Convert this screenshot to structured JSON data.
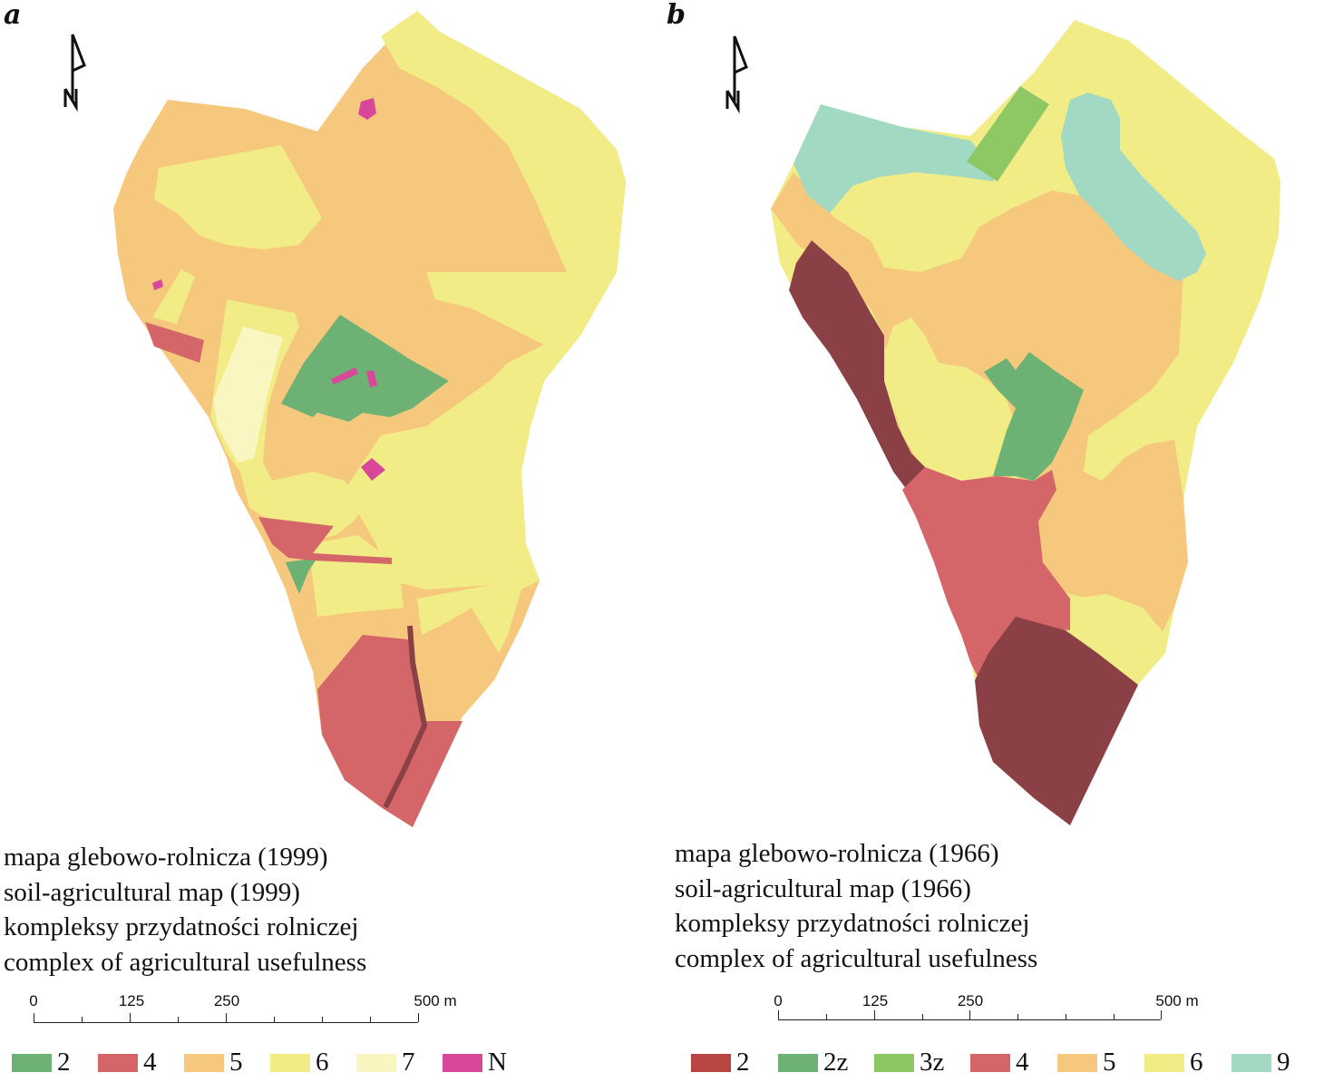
{
  "panels": [
    {
      "letter": "a",
      "titles": [
        "mapa glebowo-rolnicza (1999)",
        "soil-agricultural map (1999)",
        "kompleksy przydatności rolniczej",
        "complex of agricultural usefulness"
      ],
      "north_label": "N",
      "scale_labels": [
        "0",
        "125",
        "250",
        "500 m"
      ],
      "legend": [
        {
          "label": "2",
          "color": "#6db274"
        },
        {
          "label": "4",
          "color": "#d4666a"
        },
        {
          "label": "5",
          "color": "#f6c87d"
        },
        {
          "label": "6",
          "color": "#f1ec85"
        },
        {
          "label": "7",
          "color": "#f9f6c2"
        },
        {
          "label": "N",
          "color": "#d9479a"
        }
      ]
    },
    {
      "letter": "b",
      "titles": [
        "mapa glebowo-rolnicza (1966)",
        "soil-agricultural map (1966)",
        "kompleksy przydatności rolniczej",
        "complex of agricultural usefulness"
      ],
      "north_label": "N",
      "scale_labels": [
        "0",
        "125",
        "250",
        "500 m"
      ],
      "legend": [
        {
          "label": "2",
          "color": "#b84542"
        },
        {
          "label": "2z",
          "color": "#6db274"
        },
        {
          "label": "3z",
          "color": "#8dc865"
        },
        {
          "label": "4",
          "color": "#d4666a"
        },
        {
          "label": "5",
          "color": "#f6c87d"
        },
        {
          "label": "6",
          "color": "#f1ec85"
        },
        {
          "label": "9",
          "color": "#a2d9c3"
        }
      ]
    }
  ],
  "colors": {
    "class_2_dark": "#8a4045",
    "class_2z": "#6db274",
    "class_3z": "#8dc865",
    "class_4": "#d4666a",
    "class_5": "#f6c87d",
    "class_6": "#f1ec85",
    "class_7": "#f9f6c2",
    "class_N": "#d9479a",
    "class_9": "#a2d9c3"
  }
}
